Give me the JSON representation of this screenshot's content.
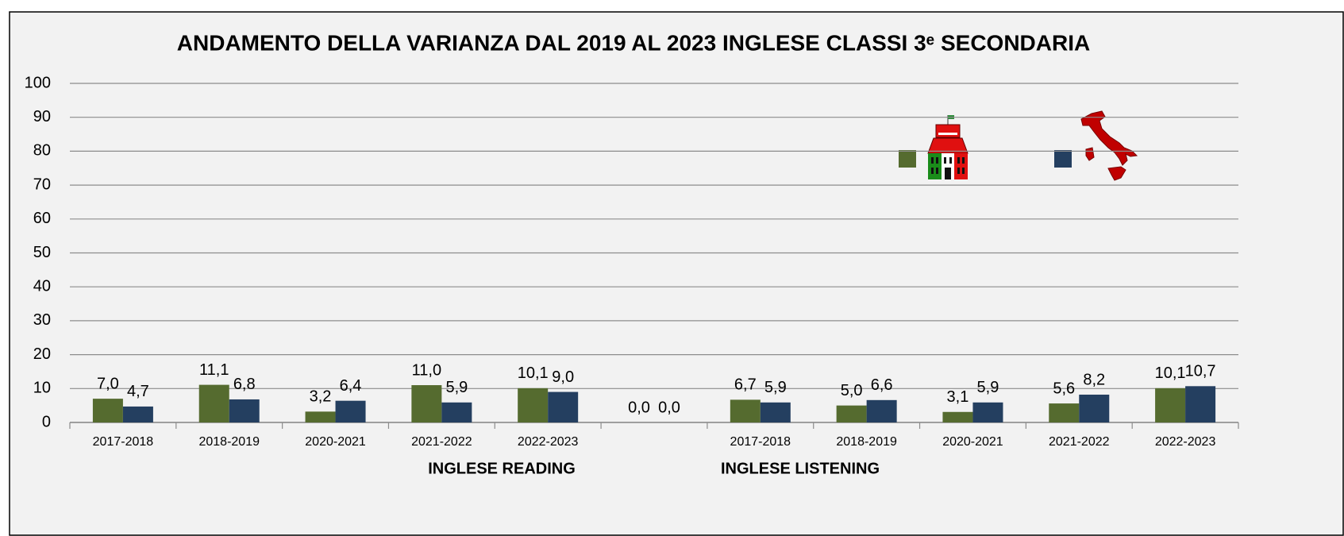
{
  "chart_data": {
    "type": "bar",
    "title": "ANDAMENTO DELLA VARIANZA DAL 2019 AL 2023 INGLESE CLASSI 3ᵉ SECONDARIA",
    "categories": [
      "2017-2018",
      "2018-2019",
      "2020-2021",
      "2021-2022",
      "2022-2023",
      null,
      "2017-2018",
      "2018-2019",
      "2020-2021",
      "2021-2022",
      "2022-2023"
    ],
    "series": [
      {
        "color": "#556b2f",
        "values": [
          7.0,
          11.1,
          3.2,
          11.0,
          10.1,
          0.0,
          6.7,
          5.0,
          3.1,
          5.6,
          10.1
        ],
        "value_labels": [
          "7,0",
          "11,1",
          "3,2",
          "11,0",
          "10,1",
          "0,0",
          "6,7",
          "5,0",
          "3,1",
          "5,6",
          "10,1"
        ]
      },
      {
        "color": "#243f60",
        "values": [
          4.7,
          6.8,
          6.4,
          5.9,
          9.0,
          0.0,
          5.9,
          6.6,
          5.9,
          8.2,
          10.7
        ],
        "value_labels": [
          "4,7",
          "6,8",
          "6,4",
          "5,9",
          "9,0",
          "0,0",
          "5,9",
          "6,6",
          "5,9",
          "8,2",
          "10,7"
        ]
      }
    ],
    "annotations": [
      "INGLESE READING",
      "INGLESE LISTENING"
    ],
    "ylim": [
      0,
      100
    ],
    "yticks": [
      0,
      10,
      20,
      30,
      40,
      50,
      60,
      70,
      80,
      90,
      100
    ],
    "grid": true
  }
}
